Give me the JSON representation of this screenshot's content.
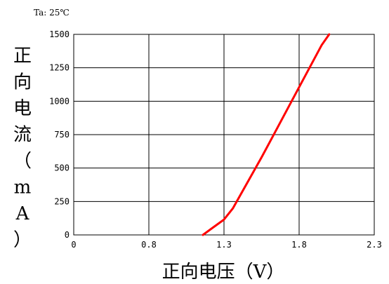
{
  "condition": "Ta: 25℃",
  "chart_data": {
    "type": "line",
    "title": "",
    "xlabel": "正向电压（V）",
    "ylabel": "正向电流（mA）",
    "xlim": [
      0,
      2.3
    ],
    "ylim": [
      0,
      1500
    ],
    "x_ticks": [
      "0",
      "0.8",
      "1.3",
      "1.8",
      "2.3"
    ],
    "y_ticks": [
      "0",
      "250",
      "500",
      "750",
      "1000",
      "1250",
      "1500"
    ],
    "grid": true,
    "line_color": "#ff0000",
    "series": [
      {
        "x": [
          1.16,
          1.22,
          1.3,
          1.36,
          1.45,
          1.55,
          1.65,
          1.75,
          1.85,
          1.95,
          2.0
        ],
        "values": [
          0,
          50,
          115,
          200,
          380,
          580,
          790,
          1000,
          1210,
          1420,
          1500
        ]
      }
    ]
  }
}
